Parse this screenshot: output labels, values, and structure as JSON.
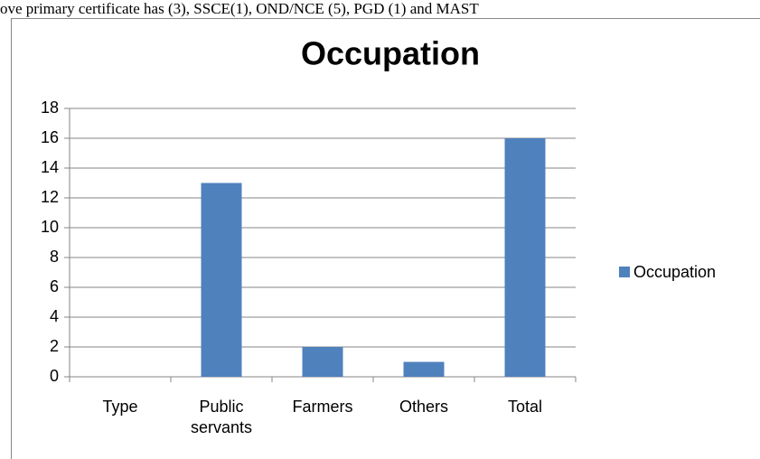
{
  "top_text": "ove primary certificate has (3), SSCE(1), OND/NCE (5), PGD (1) and MAST",
  "chart_data": {
    "type": "bar",
    "title": "Occupation",
    "categories": [
      "Type",
      "Public servants",
      "Farmers",
      "Others",
      "Total"
    ],
    "series": [
      {
        "name": "Occupation",
        "color": "#4f81bd",
        "values": [
          0,
          13,
          2,
          1,
          16
        ]
      }
    ],
    "ylim": [
      0,
      18
    ],
    "yticks": [
      0,
      2,
      4,
      6,
      8,
      10,
      12,
      14,
      16,
      18
    ],
    "grid": true,
    "legend": "right"
  }
}
